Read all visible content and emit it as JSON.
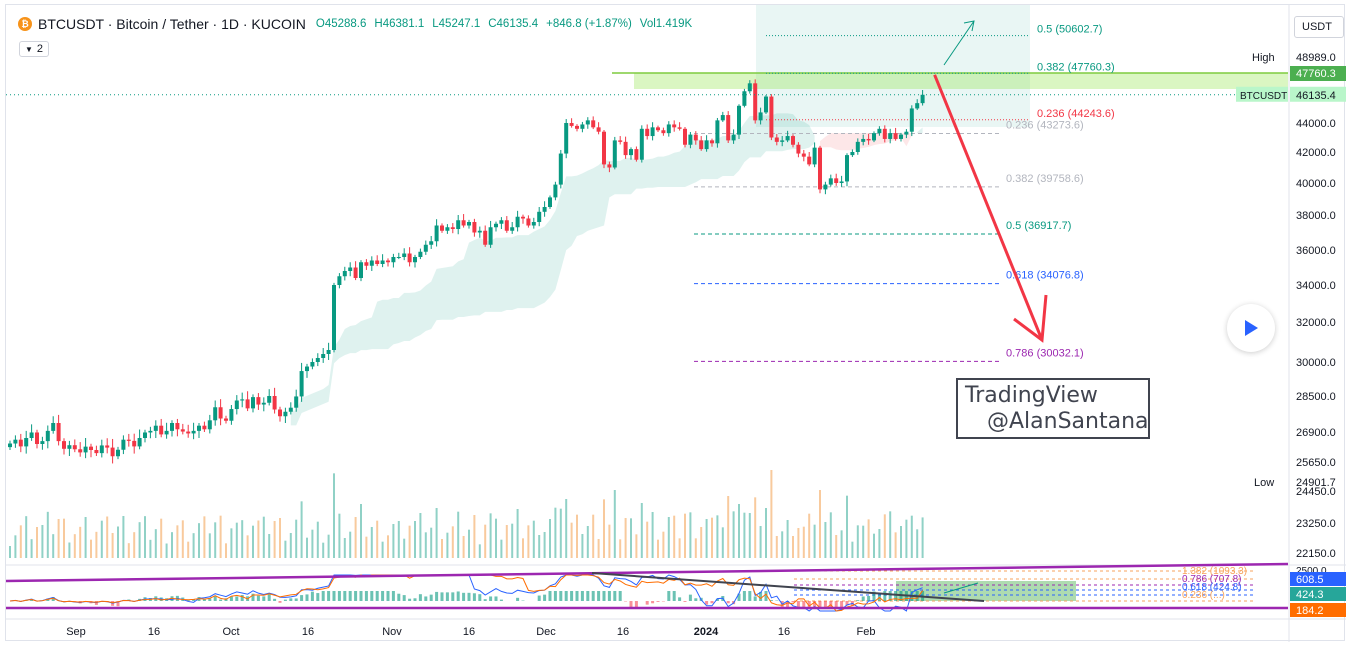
{
  "header": {
    "symbol_line": "BTCUSDT · Bitcoin / Tether · 1D · KUCOIN",
    "open": "O45288.6",
    "high": "H46381.1",
    "low": "L45247.1",
    "close": "C46135.4",
    "change": "+846.8 (+1.87%)",
    "volume": "Vol1.419K",
    "indicator_count": "2",
    "logo_glyph": "₿"
  },
  "currency_button": "USDT",
  "play_icon": "play-icon",
  "watermark": {
    "line1": "TradingView",
    "line2": "@AlanSantana"
  },
  "colors": {
    "up": "#089981",
    "down": "#f23645",
    "accent": "#2962ff",
    "macd_line": "#9c27b0"
  },
  "chart_data": {
    "type": "candlestick",
    "symbol": "BTCUSDT",
    "interval": "1D",
    "price_axis_labels": [
      "48989.0",
      "44000.0",
      "42000.0",
      "40000.0",
      "38000.0",
      "36000.0",
      "34000.0",
      "32000.0",
      "30000.0",
      "28500.0",
      "26900.0",
      "25650.0",
      "24450.0",
      "23250.0",
      "22150.0"
    ],
    "price_badges": [
      {
        "label": "High",
        "value": "48989.0"
      },
      {
        "label": "",
        "value": "47760.3"
      },
      {
        "label": "BTCUSDT",
        "value": "46135.4"
      },
      {
        "label": "Low",
        "value": "24901.7"
      }
    ],
    "time_axis_labels": [
      "Sep",
      "16",
      "Oct",
      "16",
      "Nov",
      "16",
      "Dec",
      "16",
      "2024",
      "16",
      "Feb"
    ],
    "fib_up": [
      {
        "label": "0.5 (50602.7)",
        "price": 50602.7
      },
      {
        "label": "0.382 (47760.3)",
        "price": 47760.3
      },
      {
        "label": "0.236 (44243.6)",
        "price": 44243.6
      }
    ],
    "fib_down": [
      {
        "label": "0.236 (43273.6)",
        "price": 43273.6
      },
      {
        "label": "0.382 (39758.6)",
        "price": 39758.6
      },
      {
        "label": "0.5 (36917.7)",
        "price": 36917.7
      },
      {
        "label": "0.618 (34076.8)",
        "price": 34076.8
      },
      {
        "label": "0.786 (30032.1)",
        "price": 30032.1
      }
    ],
    "osc_axis_labels": [
      "2500.0",
      "608.5",
      "424.3",
      "184.2"
    ],
    "osc_fib_labels": [
      "1.382 (1093.3)",
      "0.786 (707.8)",
      "0.618 (424.8)",
      "0.236 (...)"
    ],
    "closes": [
      26420,
      26580,
      26300,
      26650,
      26880,
      26400,
      26520,
      26950,
      27300,
      26520,
      26200,
      26350,
      26180,
      26050,
      26290,
      26150,
      26020,
      26340,
      26250,
      25890,
      26160,
      26580,
      26530,
      26300,
      26650,
      26880,
      26950,
      27180,
      26800,
      26950,
      27300,
      27020,
      26920,
      26840,
      26950,
      27180,
      27020,
      27420,
      28000,
      27500,
      27400,
      27920,
      28300,
      28350,
      27950,
      28450,
      28120,
      28200,
      28500,
      27900,
      27600,
      27800,
      27980,
      28480,
      29600,
      29800,
      30000,
      30200,
      30400,
      30600,
      34000,
      34500,
      34800,
      35000,
      34400,
      35300,
      35100,
      35400,
      35200,
      35400,
      35300,
      35600,
      35600,
      35800,
      35300,
      35600,
      35900,
      36300,
      36500,
      37400,
      37100,
      37300,
      37200,
      37700,
      37400,
      37600,
      37000,
      37100,
      36300,
      37300,
      37500,
      37700,
      37100,
      37300,
      37900,
      37800,
      37400,
      37600,
      38200,
      38500,
      39100,
      39900,
      41900,
      44000,
      43800,
      43600,
      43900,
      44200,
      43700,
      43400,
      41200,
      41000,
      42800,
      42700,
      41800,
      42200,
      41500,
      43600,
      43100,
      43700,
      43500,
      43300,
      43900,
      43700,
      43600,
      42500,
      43200,
      42800,
      42200,
      42800,
      42600,
      44200,
      44600,
      42800,
      43200,
      45300,
      46400,
      47000,
      44200,
      44800,
      46000,
      43000,
      42700,
      42800,
      43100,
      42500,
      41900,
      41700,
      41200,
      42300,
      39600,
      39900,
      40300,
      40000,
      40100,
      41800,
      42000,
      42700,
      42900,
      42800,
      43300,
      43600,
      42900,
      43300,
      42900,
      43200,
      43400,
      45100,
      45500,
      46135
    ],
    "fib_target_price": 31500
  }
}
